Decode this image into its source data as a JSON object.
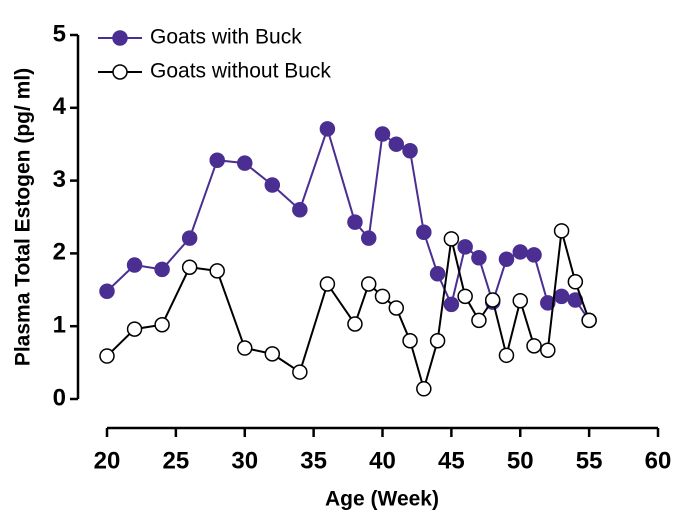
{
  "chart_data": {
    "type": "line",
    "x_label": "Age (Week)",
    "y_label": "Plasma Total Estogen (pg/ ml)",
    "x": [
      20,
      22,
      24,
      26,
      28,
      30,
      32,
      34,
      36,
      38,
      39,
      40,
      41,
      42,
      43,
      44,
      45,
      46,
      47,
      48,
      49,
      50,
      51,
      52,
      53,
      54,
      55
    ],
    "series": [
      {
        "name": "Goats with Buck",
        "color": "#4b2e91",
        "filled": true,
        "values": [
          1.48,
          1.84,
          1.78,
          2.21,
          3.28,
          3.24,
          2.94,
          2.6,
          3.71,
          2.43,
          2.21,
          3.64,
          3.5,
          3.41,
          2.29,
          1.72,
          1.3,
          2.09,
          1.94,
          1.33,
          1.92,
          2.02,
          1.98,
          1.32,
          1.41,
          1.36,
          1.08
        ]
      },
      {
        "name": "Goats without Buck",
        "color": "#000000",
        "filled": false,
        "values": [
          0.59,
          0.96,
          1.02,
          1.81,
          1.76,
          0.7,
          0.62,
          0.37,
          1.58,
          1.03,
          1.58,
          1.41,
          1.25,
          0.8,
          0.14,
          0.8,
          2.2,
          1.41,
          1.08,
          1.36,
          0.6,
          1.35,
          0.73,
          0.67,
          2.31,
          1.61,
          1.08
        ]
      }
    ],
    "xlim": [
      20,
      60
    ],
    "xticks": [
      20,
      25,
      30,
      35,
      40,
      45,
      50,
      55,
      60
    ],
    "ylim": [
      0,
      5
    ],
    "yticks": [
      0,
      1,
      2,
      3,
      4,
      5
    ],
    "legend": "upper left"
  }
}
